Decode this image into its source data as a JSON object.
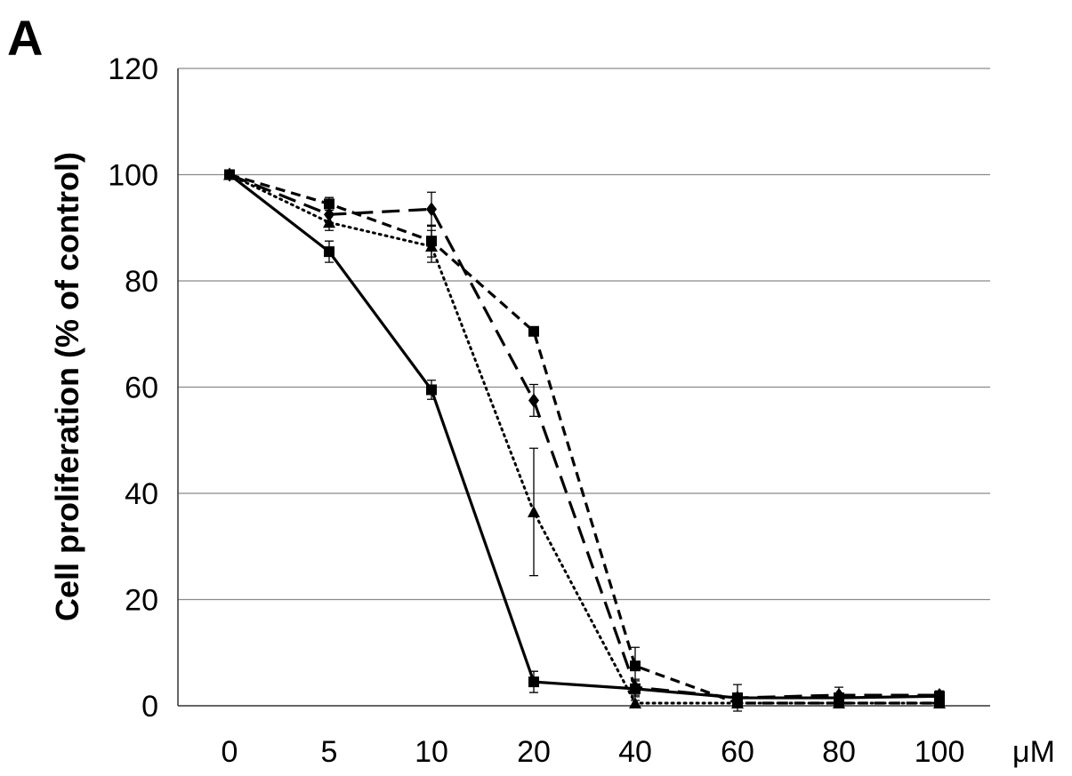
{
  "panel_label": "A",
  "chart_data": {
    "type": "line",
    "categories": [
      "0",
      "5",
      "10",
      "20",
      "40",
      "60",
      "80",
      "100"
    ],
    "unit_label": "μM",
    "ylabel": "Cell proliferation (% of control)",
    "ylim": [
      0,
      120
    ],
    "yticks": [
      0,
      20,
      40,
      60,
      80,
      100,
      120
    ],
    "grid": "horizontal",
    "series": [
      {
        "line_style": "solid",
        "marker": "square",
        "values": [
          100,
          85.5,
          59.5,
          4.5,
          3.2,
          1.5,
          1.5,
          1.8
        ],
        "errors": [
          0,
          2,
          1.8,
          2,
          1.5,
          0.5,
          0.3,
          0.3
        ]
      },
      {
        "line_style": "dotted",
        "marker": "triangle",
        "values": [
          100,
          91,
          86.5,
          36.5,
          0.5,
          0.5,
          0.5,
          0.5
        ],
        "errors": [
          0,
          1.5,
          3,
          12,
          0.5,
          0.3,
          0.3,
          0.3
        ]
      },
      {
        "line_style": "long-dash",
        "marker": "diamond",
        "values": [
          100,
          92.5,
          93.5,
          57.5,
          3.5,
          1.5,
          2,
          2
        ],
        "errors": [
          0,
          1.5,
          3.2,
          3,
          1.5,
          2.5,
          1.5,
          0.8
        ]
      },
      {
        "line_style": "short-dash",
        "marker": "square",
        "values": [
          100,
          94.5,
          87.5,
          70.5,
          7.5,
          0.5,
          0.5,
          0.5
        ],
        "errors": [
          0,
          1.2,
          3,
          0.8,
          3.5,
          0.5,
          0.3,
          0.3
        ]
      }
    ]
  }
}
